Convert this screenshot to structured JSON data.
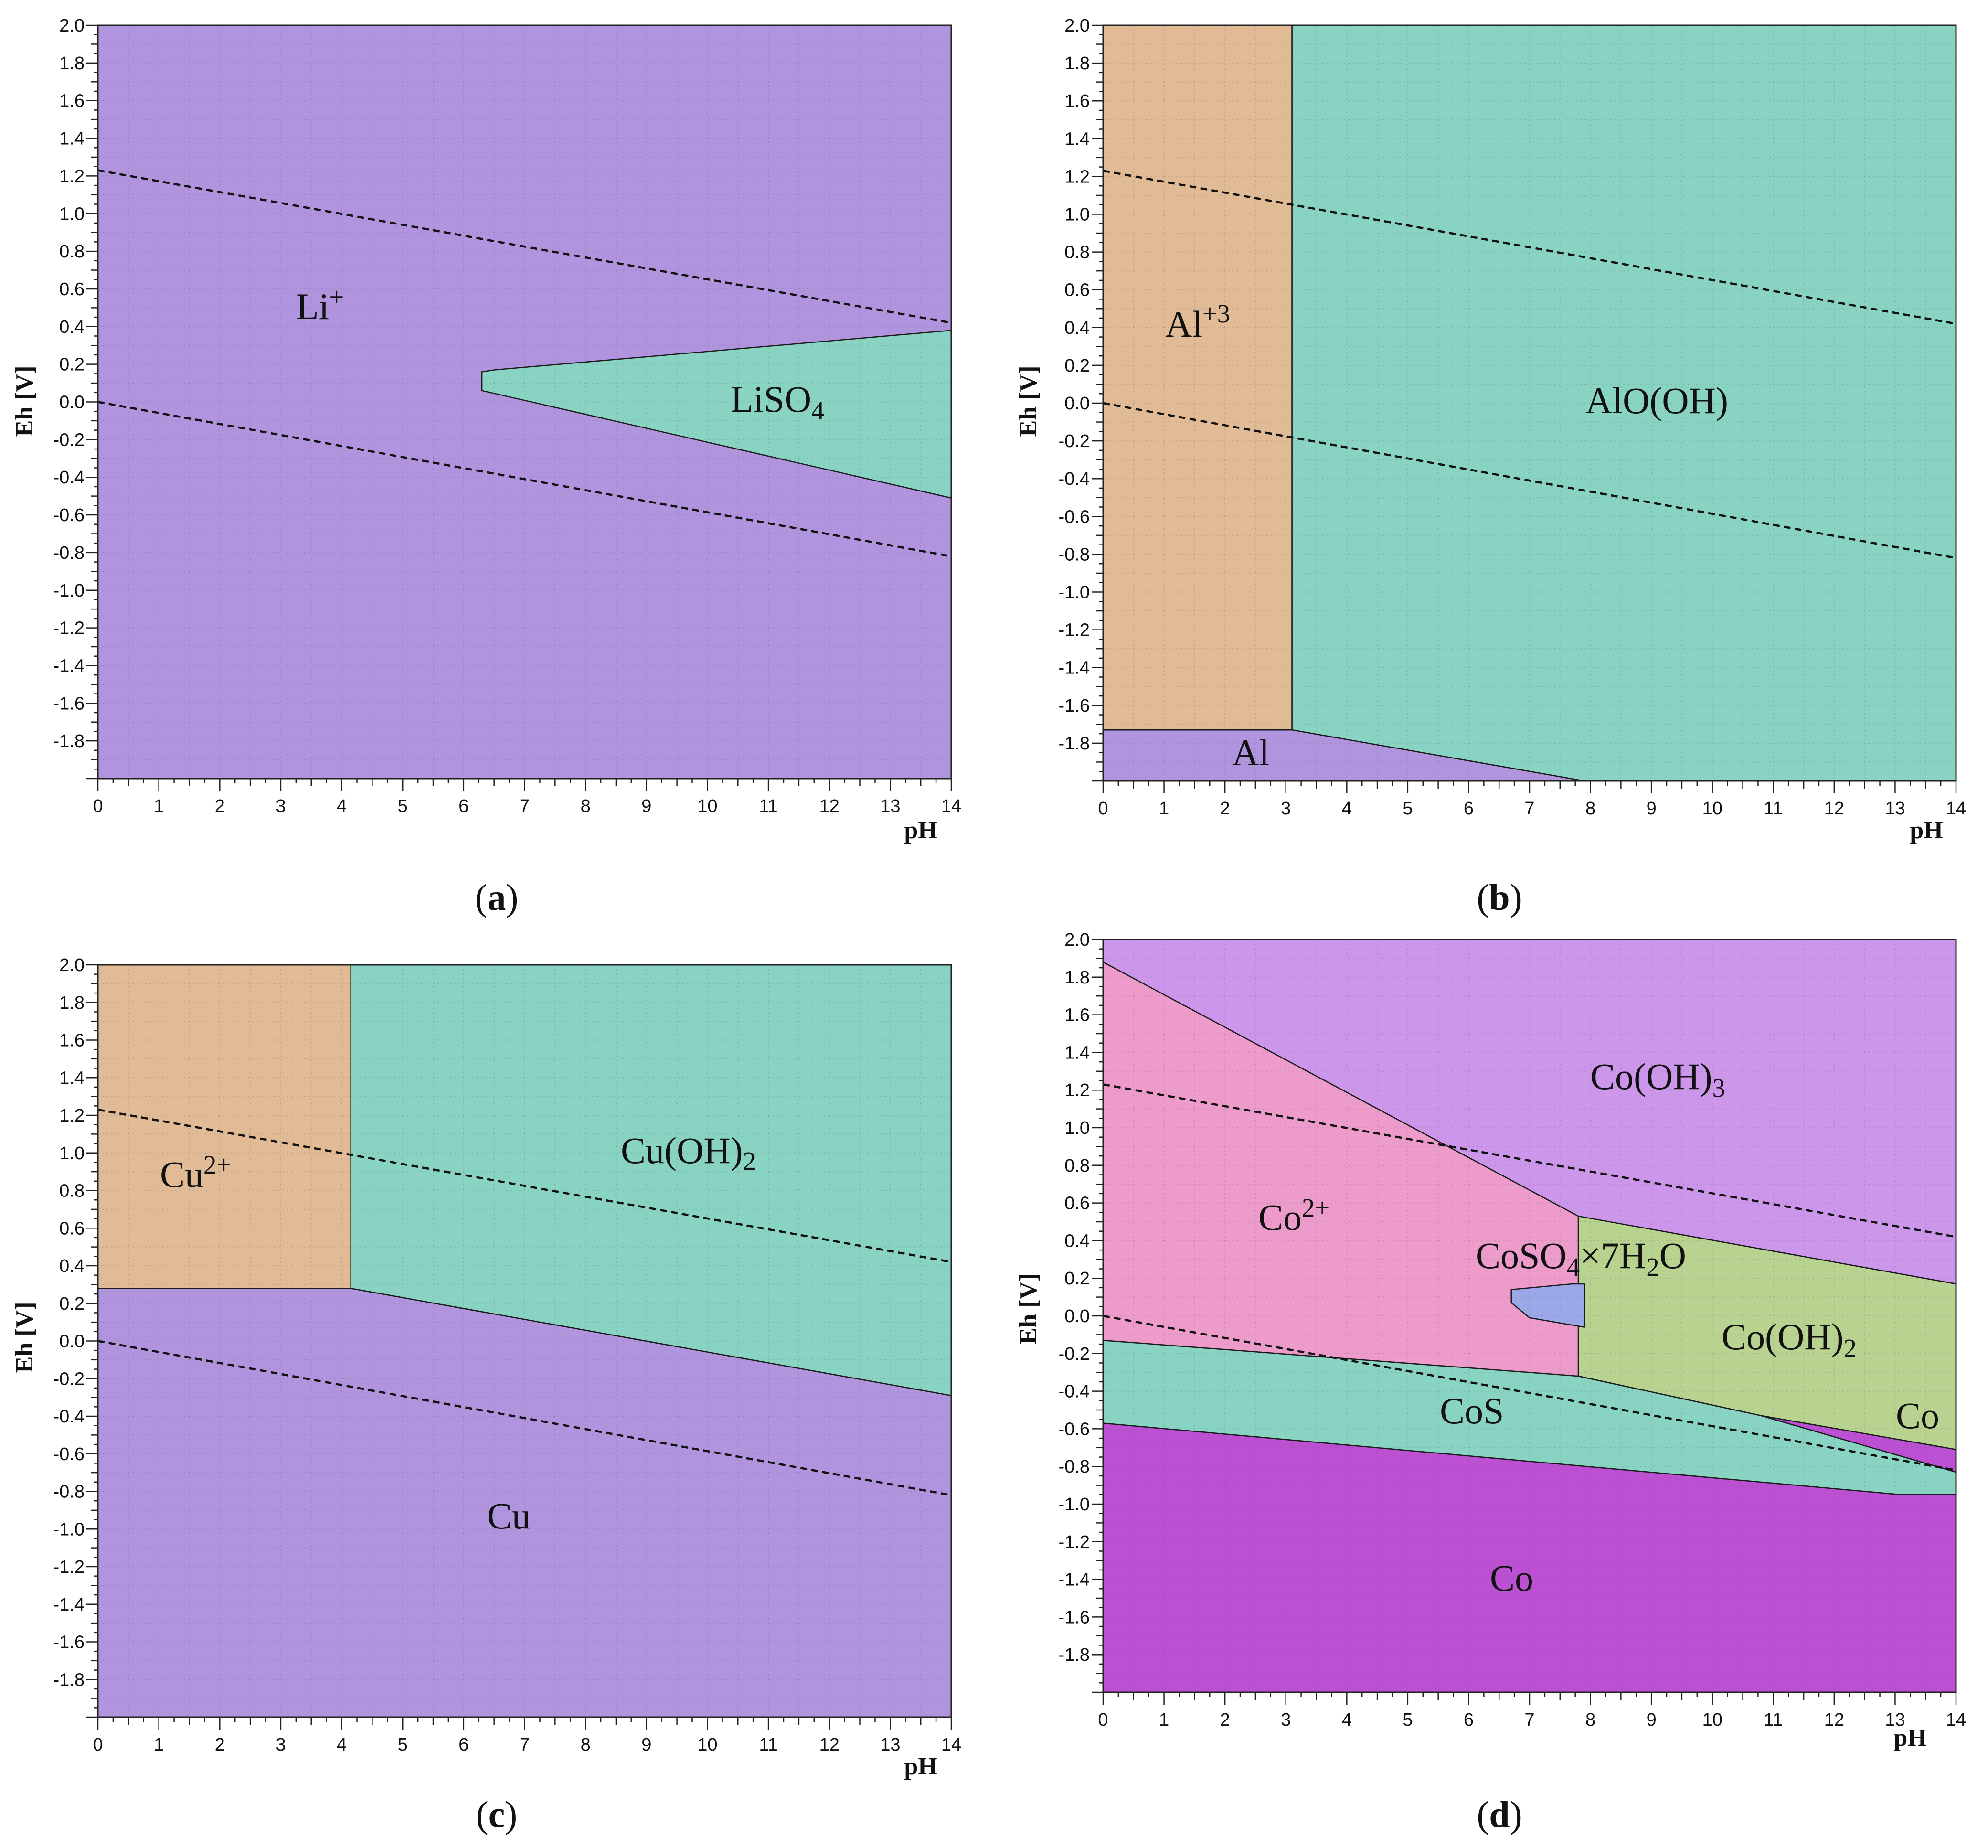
{
  "figure": {
    "axes": {
      "xlabel": "pH",
      "ylabel": "Eh [V]",
      "x_ticks": [
        "0",
        "1",
        "2",
        "3",
        "4",
        "5",
        "6",
        "7",
        "8",
        "9",
        "10",
        "11",
        "12",
        "13",
        "14"
      ],
      "y_ticks_a": [
        "2.0",
        "1.8",
        "1.6",
        "1.4",
        "1.2",
        "1.0",
        "0.8",
        "0.6",
        "0.4",
        "0.2",
        "0.0",
        "-0.2",
        "-0.4",
        "-0.6",
        "-0.8",
        "-1.0",
        "-1.2",
        "-1.4",
        "-1.6",
        "-1.8"
      ],
      "y_ticks_b": [
        "2.0",
        "1.8",
        "1.6",
        "1.4",
        "1.2",
        "1.0",
        "0.8",
        "0.6",
        "0.4",
        "0.2",
        "0.0",
        "-0.2",
        "-0.4",
        "-0.6",
        "-0.8",
        "-1.0",
        "-1.2",
        "-1.4",
        "-1.6",
        "-1.8"
      ],
      "y_ticks_c": [
        "2.0",
        "1.8",
        "1.6",
        "1.4",
        "1.2",
        "1.0",
        "0.8",
        "0.6",
        "0.4",
        "0.2",
        "0.0",
        "-0.2",
        "-0.4",
        "-0.6",
        "-0.8",
        "-1.0",
        "-1.2",
        "-1.4",
        "-1.6",
        "-1.8"
      ],
      "y_ticks_d": [
        "2.0",
        "1.8",
        "1.6",
        "1.4",
        "1.2",
        "1.0",
        "0.8",
        "0.6",
        "0.4",
        "0.2",
        "0.0",
        "-0.2",
        "-0.4",
        "-0.6",
        "-0.8",
        "-1.0",
        "-1.2",
        "-1.4",
        "-1.6",
        "-1.8"
      ]
    },
    "colors": {
      "purple": "#b095de",
      "teal": "#88d3c2",
      "tan": "#e0bb95",
      "pink": "#ec9bcb",
      "lavender": "#cc96eb",
      "olive": "#b8d38f",
      "magenta": "#bb50d2",
      "blue": "#9aa8e8"
    }
  },
  "chart_data": [
    {
      "id": "a",
      "type": "area",
      "caption_letter": "a",
      "caption_open": "(",
      "caption_close": ")",
      "title": "",
      "xlabel": "pH",
      "ylabel": "Eh [V]",
      "xlim": [
        0,
        14
      ],
      "ylim": [
        -2.0,
        2.0
      ],
      "regions": [
        {
          "label": "Li",
          "sup": "+",
          "sub": "",
          "color": "purple",
          "polygon": [
            [
              0,
              -2.0
            ],
            [
              14,
              -2.0
            ],
            [
              14,
              2.0
            ],
            [
              0,
              2.0
            ]
          ],
          "label_at": [
            3.7,
            0.5
          ]
        },
        {
          "label": "LiSO",
          "sub": "4",
          "sup": "",
          "color": "teal",
          "polygon": [
            [
              6.3,
              0.06
            ],
            [
              6.3,
              0.16
            ],
            [
              6.5,
              0.17
            ],
            [
              14,
              0.38
            ],
            [
              14,
              -0.51
            ]
          ],
          "label_at": [
            11.2,
            -0.02
          ]
        }
      ],
      "water_lines": [
        {
          "x": [
            0,
            14
          ],
          "y": [
            1.23,
            0.42
          ]
        },
        {
          "x": [
            0,
            14
          ],
          "y": [
            0.0,
            -0.82
          ]
        }
      ]
    },
    {
      "id": "b",
      "type": "area",
      "caption_letter": "b",
      "caption_open": "(",
      "caption_close": ")",
      "title": "",
      "xlabel": "pH",
      "ylabel": "Eh [V]",
      "xlim": [
        0,
        14
      ],
      "ylim": [
        -2.0,
        2.0
      ],
      "regions": [
        {
          "label": "AlO(OH)",
          "sub": "",
          "sup": "",
          "color": "teal",
          "polygon": [
            [
              3.1,
              2.0
            ],
            [
              14,
              2.0
            ],
            [
              14,
              -2.0
            ],
            [
              7.9,
              -2.0
            ],
            [
              3.1,
              -1.73
            ]
          ],
          "label_at": [
            9.2,
            -0.02
          ]
        },
        {
          "label": "Al",
          "sup": "+3",
          "sub": "",
          "color": "tan",
          "polygon": [
            [
              0,
              2.0
            ],
            [
              3.1,
              2.0
            ],
            [
              3.1,
              -1.73
            ],
            [
              0,
              -1.73
            ]
          ],
          "label_at": [
            1.5,
            0.38
          ]
        },
        {
          "label": "Al",
          "sub": "",
          "sup": "",
          "color": "purple",
          "polygon": [
            [
              0,
              -1.73
            ],
            [
              3.1,
              -1.73
            ],
            [
              7.9,
              -2.0
            ],
            [
              0,
              -2.0
            ]
          ],
          "label_at": [
            2.5,
            -1.88
          ]
        }
      ],
      "water_lines": [
        {
          "x": [
            0,
            14
          ],
          "y": [
            1.23,
            0.42
          ]
        },
        {
          "x": [
            0,
            14
          ],
          "y": [
            0.0,
            -0.82
          ]
        }
      ]
    },
    {
      "id": "c",
      "type": "area",
      "caption_letter": "c",
      "caption_open": "(",
      "caption_close": ")",
      "title": "",
      "xlabel": "pH",
      "ylabel": "Eh [V]",
      "xlim": [
        0,
        14
      ],
      "ylim": [
        -2.0,
        2.0
      ],
      "regions": [
        {
          "label": "Cu",
          "sub": "",
          "sup": "",
          "color": "purple",
          "polygon": [
            [
              0,
              -2.0
            ],
            [
              14,
              -2.0
            ],
            [
              14,
              -0.29
            ],
            [
              4.15,
              0.28
            ],
            [
              0,
              0.28
            ]
          ],
          "label_at": [
            6.8,
            -0.98
          ]
        },
        {
          "label": "Cu",
          "sup": "2+",
          "sub": "",
          "color": "tan",
          "polygon": [
            [
              0,
              0.28
            ],
            [
              4.15,
              0.28
            ],
            [
              4.15,
              2.0
            ],
            [
              0,
              2.0
            ]
          ],
          "label_at": [
            1.7,
            0.82
          ]
        },
        {
          "label": "Cu(OH)",
          "sub": "2",
          "sup": "",
          "color": "teal",
          "polygon": [
            [
              4.15,
              2.0
            ],
            [
              14,
              2.0
            ],
            [
              14,
              -0.29
            ],
            [
              4.15,
              0.28
            ]
          ],
          "label_at": [
            9.0,
            0.97
          ]
        }
      ],
      "water_lines": [
        {
          "x": [
            0,
            14
          ],
          "y": [
            1.23,
            0.42
          ]
        },
        {
          "x": [
            0,
            14
          ],
          "y": [
            0.0,
            -0.82
          ]
        }
      ]
    },
    {
      "id": "d",
      "type": "area",
      "caption_letter": "d",
      "caption_open": "(",
      "caption_close": ")",
      "title": "",
      "xlabel": "pH",
      "ylabel": "Eh [V]",
      "xlim": [
        0,
        14
      ],
      "ylim": [
        -2.0,
        2.0
      ],
      "regions": [
        {
          "label": "Co(OH)",
          "sub": "3",
          "sup": "",
          "color": "lavender",
          "polygon": [
            [
              0,
              2.0
            ],
            [
              14,
              2.0
            ],
            [
              14,
              0.17
            ],
            [
              7.8,
              0.53
            ],
            [
              0,
              1.88
            ]
          ],
          "label_at": [
            9.3,
            1.25
          ]
        },
        {
          "label": "Co",
          "sup": "2+",
          "sub": "",
          "color": "pink",
          "polygon": [
            [
              0,
              1.88
            ],
            [
              7.8,
              0.53
            ],
            [
              7.8,
              -0.32
            ],
            [
              0,
              -0.13
            ]
          ],
          "label_at": [
            3.0,
            0.47
          ]
        },
        {
          "label": "Co(OH)",
          "sub": "2",
          "sup": "",
          "color": "olive",
          "polygon": [
            [
              7.8,
              0.53
            ],
            [
              14,
              0.17
            ],
            [
              14,
              -0.71
            ],
            [
              10.8,
              -0.53
            ],
            [
              7.8,
              -0.32
            ]
          ],
          "label_at": [
            11.5,
            -0.18
          ]
        },
        {
          "label": "CoS",
          "sub": "",
          "sup": "",
          "color": "teal",
          "polygon": [
            [
              0,
              -0.13
            ],
            [
              7.8,
              -0.32
            ],
            [
              10.8,
              -0.53
            ],
            [
              14,
              -0.83
            ],
            [
              14,
              -0.95
            ],
            [
              13.1,
              -0.95
            ],
            [
              0,
              -0.57
            ]
          ],
          "label_at": [
            6.0,
            -0.58
          ]
        },
        {
          "label": "Co",
          "sub": "",
          "sup": "",
          "color": "magenta",
          "polygon": [
            [
              0,
              -0.57
            ],
            [
              13.1,
              -0.95
            ],
            [
              14,
              -0.95
            ],
            [
              14,
              -2.0
            ],
            [
              0,
              -2.0
            ]
          ],
          "label_at": [
            6.8,
            -1.55
          ]
        },
        {
          "label": "Co",
          "sub": "",
          "sup": "",
          "color": "magenta",
          "polygon": [
            [
              10.8,
              -0.53
            ],
            [
              14,
              -0.71
            ],
            [
              14,
              -0.83
            ]
          ],
          "label_at": [
            13.6,
            -0.62
          ]
        },
        {
          "label": "CoSO4×7H2O",
          "sub": "",
          "sup": "",
          "color": "blue",
          "polygon": [
            [
              6.7,
              0.14
            ],
            [
              7.7,
              0.17
            ],
            [
              7.9,
              0.17
            ],
            [
              7.9,
              -0.06
            ],
            [
              7.0,
              -0.01
            ],
            [
              6.7,
              0.07
            ]
          ],
          "label_at": [
            9.0,
            0.26
          ]
        }
      ],
      "label_parts": {
        "coso4": {
          "a": "CoSO",
          "b": "4",
          "c": "×7H",
          "d": "2",
          "e": "O"
        }
      },
      "water_lines": [
        {
          "x": [
            0,
            14
          ],
          "y": [
            1.23,
            0.42
          ]
        },
        {
          "x": [
            0,
            14
          ],
          "y": [
            0.0,
            -0.82
          ]
        }
      ]
    }
  ]
}
